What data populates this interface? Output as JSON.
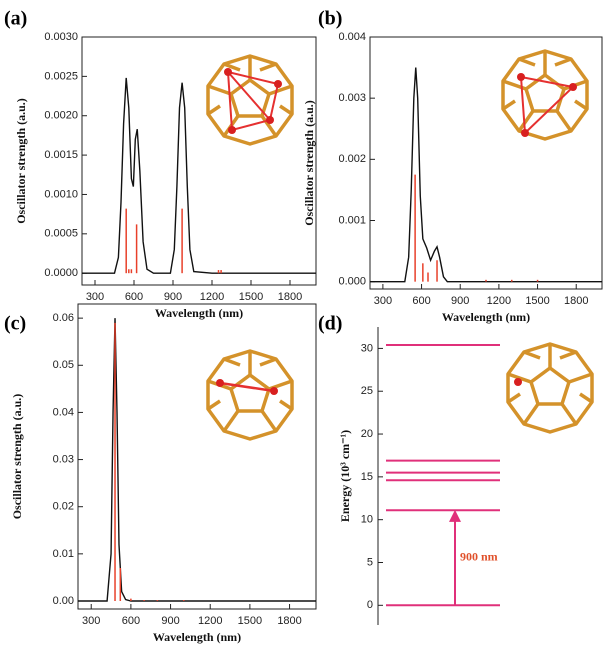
{
  "chart_data": [
    {
      "type": "spectrum",
      "label": "(a)",
      "xlabel": "Wavelength (nm)",
      "ylabel": "Oscillator strength (a.u.)",
      "xlim": [
        200,
        2000
      ],
      "xticks": [
        300,
        600,
        900,
        1200,
        1500,
        1800
      ],
      "ylim": [
        -0.00015,
        0.003
      ],
      "yticks": [
        {
          "value": 0,
          "label": "0.0000"
        },
        {
          "value": 0.0005,
          "label": "0.0005"
        },
        {
          "value": 0.001,
          "label": "0.0010"
        },
        {
          "value": 0.0015,
          "label": "0.0015"
        },
        {
          "value": 0.002,
          "label": "0.0020"
        },
        {
          "value": 0.0025,
          "label": "0.0025"
        },
        {
          "value": 0.003,
          "label": "0.0030"
        }
      ],
      "series": [
        {
          "type": "line",
          "color": "#111111",
          "x": [
            200,
            450,
            480,
            500,
            520,
            540,
            560,
            580,
            595,
            610,
            625,
            645,
            670,
            700,
            750,
            880,
            910,
            930,
            950,
            970,
            990,
            1010,
            1030,
            1060,
            1200,
            2000
          ],
          "values": [
            0,
            0,
            0.0002,
            0.0009,
            0.0019,
            0.00248,
            0.0021,
            0.0012,
            0.0011,
            0.0017,
            0.00183,
            0.0013,
            0.0004,
            5e-05,
            0,
            0,
            0.0003,
            0.0011,
            0.0021,
            0.00242,
            0.0021,
            0.0011,
            0.0003,
            2e-05,
            0,
            0
          ]
        },
        {
          "type": "stick",
          "color": "#e8402a",
          "x": [
            540,
            560,
            580,
            620,
            970,
            1250,
            1270
          ],
          "values": [
            0.00082,
            5e-05,
            5e-05,
            0.00062,
            0.00082,
            4e-05,
            4e-05
          ]
        }
      ]
    },
    {
      "type": "spectrum",
      "label": "(b)",
      "xlabel": "Wavelength (nm)",
      "ylabel": "Oscillator strength (a.u.)",
      "xlim": [
        200,
        2000
      ],
      "xticks": [
        300,
        600,
        900,
        1200,
        1500,
        1800
      ],
      "ylim": [
        -0.00012,
        0.004
      ],
      "yticks": [
        {
          "value": 0,
          "label": "0.000"
        },
        {
          "value": 0.001,
          "label": "0.001"
        },
        {
          "value": 0.002,
          "label": "0.002"
        },
        {
          "value": 0.003,
          "label": "0.003"
        },
        {
          "value": 0.004,
          "label": "0.004"
        }
      ],
      "series": [
        {
          "type": "line",
          "color": "#111111",
          "x": [
            200,
            470,
            500,
            520,
            540,
            555,
            570,
            590,
            610,
            640,
            670,
            700,
            720,
            740,
            770,
            800,
            2000
          ],
          "values": [
            0,
            0,
            0.0004,
            0.0015,
            0.003,
            0.0035,
            0.003,
            0.0014,
            0.0007,
            0.00055,
            0.00035,
            0.0005,
            0.00057,
            0.0004,
            8e-05,
            0,
            0
          ]
        },
        {
          "type": "stick",
          "color": "#e8402a",
          "x": [
            550,
            610,
            650,
            720,
            1100,
            1300,
            1500
          ],
          "values": [
            0.00175,
            0.0003,
            0.00015,
            0.00035,
            3e-05,
            3e-05,
            3e-05
          ]
        }
      ]
    },
    {
      "type": "spectrum",
      "label": "(c)",
      "xlabel": "Wavelength (nm)",
      "ylabel": "Oscillator strength (a.u.)",
      "xlim": [
        200,
        2000
      ],
      "xticks": [
        300,
        600,
        900,
        1200,
        1500,
        1800
      ],
      "ylim": [
        -0.0017,
        0.063
      ],
      "yticks": [
        {
          "value": 0,
          "label": "0.00"
        },
        {
          "value": 0.01,
          "label": "0.01"
        },
        {
          "value": 0.02,
          "label": "0.02"
        },
        {
          "value": 0.03,
          "label": "0.03"
        },
        {
          "value": 0.04,
          "label": "0.04"
        },
        {
          "value": 0.05,
          "label": "0.05"
        },
        {
          "value": 0.06,
          "label": "0.06"
        }
      ],
      "series": [
        {
          "type": "line",
          "color": "#111111",
          "x": [
            200,
            420,
            450,
            465,
            480,
            495,
            510,
            530,
            560,
            600,
            2000
          ],
          "values": [
            0,
            0,
            0.01,
            0.04,
            0.06,
            0.04,
            0.012,
            0.002,
            0.0003,
            0,
            0
          ]
        },
        {
          "type": "stick",
          "color": "#e8402a",
          "x": [
            480,
            520,
            600,
            700,
            800,
            1000
          ],
          "values": [
            0.059,
            0.007,
            0.0005,
            0.0002,
            0.0002,
            0.0002
          ]
        }
      ]
    },
    {
      "type": "levels",
      "label": "(d)",
      "ylabel": "Energy (10³ cm⁻¹)",
      "annotation": "900 nm",
      "color": "#e0307a",
      "annotation_color": "#e0502a",
      "values": [
        0,
        11.1,
        14.6,
        15.5,
        16.9,
        30.4
      ],
      "ylim": [
        -2.3,
        32.5
      ],
      "yticks": [
        0,
        5,
        10,
        15,
        20,
        25,
        30
      ]
    }
  ]
}
